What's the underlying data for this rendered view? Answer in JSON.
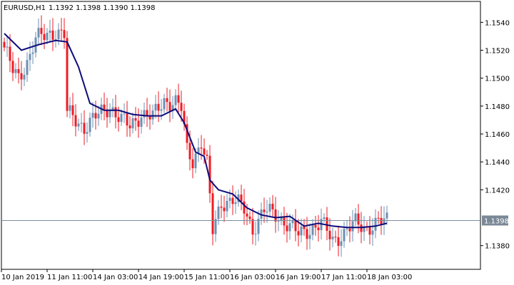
{
  "header": {
    "symbol": "EURUSD,H1",
    "ohlc": "1.1392 1.1398 1.1390 1.1398"
  },
  "colors": {
    "background": "#ffffff",
    "bull": "#6e8fb3",
    "bear": "#ee1c25",
    "ma": "#0c0c7a",
    "price_line": "#7a8fa0",
    "price_box": "#7a8896",
    "axis": "#000000"
  },
  "chart_data": {
    "type": "candlestick",
    "symbol": "EURUSD",
    "timeframe": "H1",
    "y_ticks": [
      "1.1540",
      "1.1520",
      "1.1500",
      "1.1480",
      "1.1460",
      "1.1440",
      "1.1420",
      "1.1398",
      "1.1380"
    ],
    "y_tick_values": [
      1.154,
      1.152,
      1.15,
      1.148,
      1.146,
      1.144,
      1.142,
      1.1398,
      1.138
    ],
    "current_price": 1.1398,
    "current_price_label": "1.1398",
    "ylim": [
      1.1363,
      1.1555
    ],
    "x_ticks": [
      "10 Jan 2019",
      "11 Jan 11:00",
      "14 Jan 03:00",
      "14 Jan 19:00",
      "15 Jan 11:00",
      "16 Jan 03:00",
      "16 Jan 19:00",
      "17 Jan 11:00",
      "18 Jan 03:00"
    ],
    "x_tick_bar_index": [
      0,
      16,
      32,
      48,
      64,
      80,
      96,
      112,
      128
    ],
    "bars_visible": 135,
    "moving_average": [
      [
        0,
        1.1532
      ],
      [
        6,
        1.152
      ],
      [
        12,
        1.1524
      ],
      [
        18,
        1.1527
      ],
      [
        22,
        1.1526
      ],
      [
        26,
        1.1508
      ],
      [
        30,
        1.1482
      ],
      [
        35,
        1.1477
      ],
      [
        40,
        1.1477
      ],
      [
        45,
        1.1474
      ],
      [
        50,
        1.1473
      ],
      [
        55,
        1.1473
      ],
      [
        60,
        1.1478
      ],
      [
        63,
        1.1468
      ],
      [
        67,
        1.1447
      ],
      [
        70,
        1.1444
      ],
      [
        72,
        1.1427
      ],
      [
        75,
        1.142
      ],
      [
        80,
        1.1417
      ],
      [
        85,
        1.1407
      ],
      [
        90,
        1.1402
      ],
      [
        95,
        1.14
      ],
      [
        100,
        1.1401
      ],
      [
        105,
        1.1394
      ],
      [
        110,
        1.1396
      ],
      [
        115,
        1.1394
      ],
      [
        120,
        1.1393
      ],
      [
        125,
        1.1393
      ],
      [
        130,
        1.1394
      ],
      [
        134,
        1.1396
      ]
    ],
    "anchors": [
      [
        0,
        1.1522
      ],
      [
        3,
        1.1505
      ],
      [
        5,
        1.15
      ],
      [
        8,
        1.1512
      ],
      [
        11,
        1.1528
      ],
      [
        14,
        1.153
      ],
      [
        18,
        1.1534
      ],
      [
        21,
        1.1531
      ],
      [
        22,
        1.1475
      ],
      [
        25,
        1.147
      ],
      [
        28,
        1.1465
      ],
      [
        32,
        1.1472
      ],
      [
        37,
        1.148
      ],
      [
        41,
        1.147
      ],
      [
        44,
        1.1465
      ],
      [
        48,
        1.1475
      ],
      [
        52,
        1.1472
      ],
      [
        56,
        1.1484
      ],
      [
        60,
        1.1483
      ],
      [
        62,
        1.1478
      ],
      [
        64,
        1.1448
      ],
      [
        66,
        1.1441
      ],
      [
        69,
        1.1455
      ],
      [
        71,
        1.1438
      ],
      [
        73,
        1.139
      ],
      [
        76,
        1.1411
      ],
      [
        80,
        1.1413
      ],
      [
        84,
        1.1406
      ],
      [
        87,
        1.1392
      ],
      [
        91,
        1.1405
      ],
      [
        95,
        1.1402
      ],
      [
        99,
        1.1396
      ],
      [
        103,
        1.1388
      ],
      [
        107,
        1.1392
      ],
      [
        111,
        1.1396
      ],
      [
        115,
        1.1384
      ],
      [
        119,
        1.1389
      ],
      [
        123,
        1.1396
      ],
      [
        127,
        1.1393
      ],
      [
        131,
        1.1396
      ],
      [
        134,
        1.1398
      ]
    ]
  }
}
